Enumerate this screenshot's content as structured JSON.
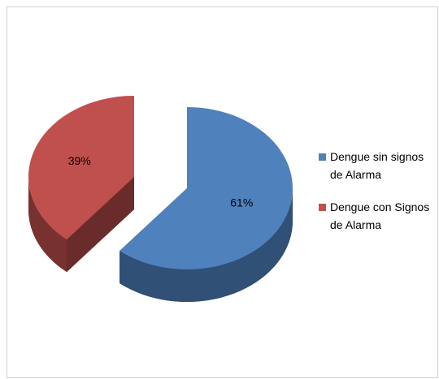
{
  "chart_data": {
    "type": "pie",
    "categories": [
      "Dengue sin signos de Alarma",
      "Dengue con Signos de Alarma"
    ],
    "values": [
      61,
      39
    ],
    "value_labels": [
      "61%",
      "39%"
    ],
    "colors": [
      "#4f81bd",
      "#c0504d"
    ],
    "legend": "right"
  }
}
